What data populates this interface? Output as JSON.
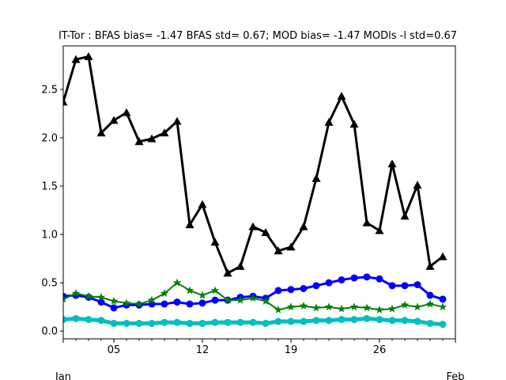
{
  "chart_data": {
    "type": "line",
    "title": "IT-Tor   : BFAS bias= -1.47 BFAS std= 0.67; MOD bias= -1.47 MODls -l std=0.67",
    "xlabel": "",
    "ylabel": "",
    "x_days": [
      1,
      2,
      3,
      4,
      5,
      6,
      7,
      8,
      9,
      10,
      11,
      12,
      13,
      14,
      15,
      16,
      17,
      18,
      19,
      20,
      21,
      22,
      23,
      24,
      25,
      26,
      27,
      28,
      29,
      30,
      31
    ],
    "xlim": [
      1,
      32
    ],
    "ylim": [
      -0.08,
      2.95
    ],
    "x_ticks": [
      {
        "day": 5,
        "label": "05"
      },
      {
        "day": 12,
        "label": "12"
      },
      {
        "day": 19,
        "label": "19"
      },
      {
        "day": 26,
        "label": "26"
      }
    ],
    "x_month_labels": [
      {
        "day": 1,
        "label": "Jan"
      },
      {
        "day": 32,
        "label": "Feb"
      }
    ],
    "y_ticks": [
      {
        "value": 0.0,
        "label": "0.0"
      },
      {
        "value": 0.5,
        "label": "0.5"
      },
      {
        "value": 1.0,
        "label": "1.0"
      },
      {
        "value": 1.5,
        "label": "1.5"
      },
      {
        "value": 2.0,
        "label": "2.0"
      },
      {
        "value": 2.5,
        "label": "2.5"
      }
    ],
    "series": [
      {
        "color": "#000000",
        "marker": "triangle",
        "width": 3,
        "values": [
          2.37,
          2.81,
          2.84,
          2.05,
          2.18,
          2.26,
          1.96,
          1.99,
          2.05,
          2.17,
          1.1,
          1.31,
          0.92,
          0.6,
          0.67,
          1.08,
          1.02,
          0.83,
          0.87,
          1.08,
          1.58,
          2.16,
          2.43,
          2.14,
          1.12,
          1.04,
          1.73,
          1.19,
          1.51,
          0.67,
          0.77
        ]
      },
      {
        "color": "#0000ff",
        "marker": "circle",
        "width": 3,
        "values": [
          0.36,
          0.37,
          0.35,
          0.3,
          0.24,
          0.27,
          0.27,
          0.28,
          0.28,
          0.3,
          0.28,
          0.29,
          0.32,
          0.32,
          0.35,
          0.36,
          0.34,
          0.42,
          0.43,
          0.44,
          0.47,
          0.5,
          0.53,
          0.55,
          0.56,
          0.54,
          0.47,
          0.47,
          0.48,
          0.37,
          0.33
        ]
      },
      {
        "color": "#008000",
        "marker": "star",
        "width": 2,
        "values": [
          0.33,
          0.39,
          0.36,
          0.35,
          0.31,
          0.29,
          0.28,
          0.32,
          0.39,
          0.5,
          0.42,
          0.37,
          0.42,
          0.32,
          0.32,
          0.34,
          0.31,
          0.22,
          0.25,
          0.26,
          0.24,
          0.25,
          0.23,
          0.25,
          0.24,
          0.22,
          0.23,
          0.27,
          0.25,
          0.28,
          0.25
        ]
      },
      {
        "color": "#00bfbf",
        "marker": "circle",
        "width": 5,
        "values": [
          0.12,
          0.13,
          0.12,
          0.11,
          0.08,
          0.08,
          0.08,
          0.08,
          0.09,
          0.09,
          0.08,
          0.08,
          0.09,
          0.09,
          0.09,
          0.09,
          0.08,
          0.1,
          0.1,
          0.1,
          0.11,
          0.11,
          0.12,
          0.12,
          0.13,
          0.12,
          0.11,
          0.11,
          0.1,
          0.08,
          0.07
        ]
      }
    ],
    "grid": false,
    "legend": "none"
  }
}
